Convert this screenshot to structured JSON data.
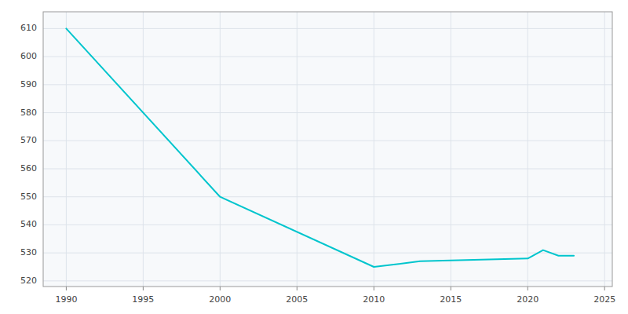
{
  "chart_data": {
    "type": "line",
    "x": [
      1990,
      2000,
      2010,
      2013,
      2020,
      2021,
      2022,
      2023
    ],
    "values": [
      610,
      550,
      525,
      527,
      528,
      531,
      529,
      529
    ],
    "color": "#00C5CD",
    "xlim": [
      1988.5,
      2025.5
    ],
    "ylim": [
      518,
      616
    ],
    "xticks": [
      1990,
      1995,
      2000,
      2005,
      2010,
      2015,
      2020,
      2025
    ],
    "yticks": [
      520,
      530,
      540,
      550,
      560,
      570,
      580,
      590,
      600,
      610
    ],
    "grid": true
  }
}
